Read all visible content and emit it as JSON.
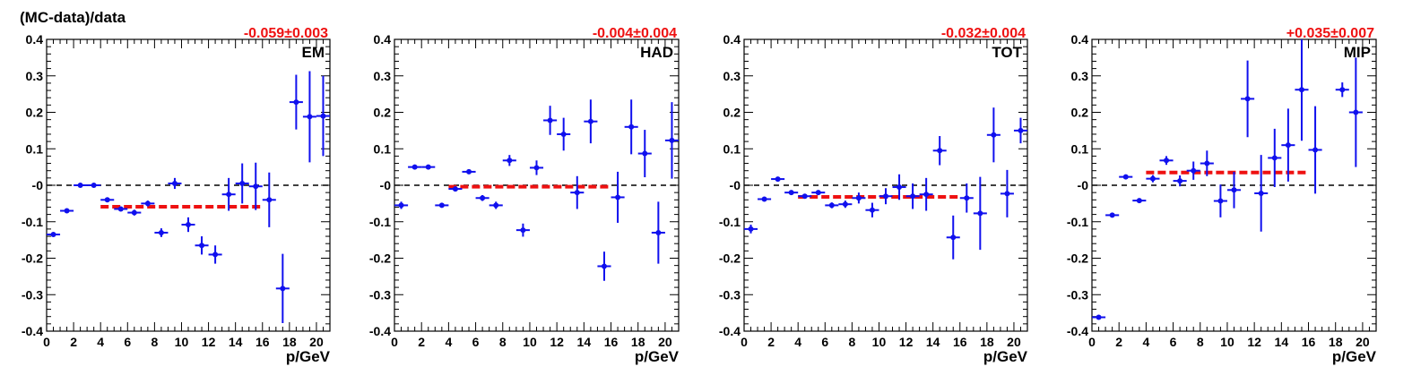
{
  "figure": {
    "ylabel": "(MC-data)/data",
    "xlabel": "p/GeV"
  },
  "colors": {
    "points": "#1010ee",
    "fit": "#ee1111",
    "zero_line": "#000000",
    "fit_label": "#ee1111"
  },
  "chart_data": [
    {
      "type": "scatter",
      "label": "EM",
      "fit_label": "-0.059±0.003",
      "fit": {
        "value": -0.059,
        "x_range": [
          4,
          16
        ]
      },
      "xlabel": "p/GeV",
      "ylabel": "(MC-data)/data",
      "xlim": [
        0,
        21
      ],
      "ylim": [
        -0.4,
        0.4
      ],
      "x_ticks": [
        "0",
        "2",
        "4",
        "6",
        "8",
        "10",
        "12",
        "14",
        "16",
        "18",
        "20"
      ],
      "y_ticks": [
        "-0.4",
        "-0.3",
        "-0.2",
        "-0.1",
        "-0",
        "0.1",
        "0.2",
        "0.3",
        "0.4"
      ],
      "points": [
        {
          "x": 0.5,
          "y": -0.135,
          "err": 0.005
        },
        {
          "x": 1.5,
          "y": -0.07,
          "err": 0.005
        },
        {
          "x": 2.5,
          "y": 0.0,
          "err": 0.004
        },
        {
          "x": 3.5,
          "y": 0.0,
          "err": 0.004
        },
        {
          "x": 4.5,
          "y": -0.04,
          "err": 0.006
        },
        {
          "x": 5.5,
          "y": -0.065,
          "err": 0.006
        },
        {
          "x": 6.5,
          "y": -0.075,
          "err": 0.008
        },
        {
          "x": 7.5,
          "y": -0.05,
          "err": 0.008
        },
        {
          "x": 8.5,
          "y": -0.13,
          "err": 0.012
        },
        {
          "x": 9.5,
          "y": 0.005,
          "err": 0.015
        },
        {
          "x": 10.5,
          "y": -0.108,
          "err": 0.02
        },
        {
          "x": 11.5,
          "y": -0.165,
          "err": 0.025
        },
        {
          "x": 12.5,
          "y": -0.19,
          "err": 0.025
        },
        {
          "x": 13.5,
          "y": -0.025,
          "err": 0.045
        },
        {
          "x": 14.5,
          "y": 0.005,
          "err": 0.055
        },
        {
          "x": 15.5,
          "y": -0.003,
          "err": 0.065
        },
        {
          "x": 16.5,
          "y": -0.04,
          "err": 0.075
        },
        {
          "x": 17.5,
          "y": -0.283,
          "err": 0.095
        },
        {
          "x": 18.5,
          "y": 0.228,
          "err": 0.075
        },
        {
          "x": 19.5,
          "y": 0.188,
          "err": 0.125
        },
        {
          "x": 20.5,
          "y": 0.19,
          "err": 0.11
        }
      ]
    },
    {
      "type": "scatter",
      "label": "HAD",
      "fit_label": "-0.004±0.004",
      "fit": {
        "value": -0.004,
        "x_range": [
          4,
          16
        ]
      },
      "xlabel": "p/GeV",
      "ylabel": "",
      "xlim": [
        0,
        21
      ],
      "ylim": [
        -0.4,
        0.4
      ],
      "x_ticks": [
        "0",
        "2",
        "4",
        "6",
        "8",
        "10",
        "12",
        "14",
        "16",
        "18",
        "20"
      ],
      "y_ticks": [
        "-0.4",
        "-0.3",
        "-0.2",
        "-0.1",
        "-0",
        "0.1",
        "0.2",
        "0.3",
        "0.4"
      ],
      "points": [
        {
          "x": 0.5,
          "y": -0.055,
          "err": 0.01
        },
        {
          "x": 1.5,
          "y": 0.05,
          "err": 0.005
        },
        {
          "x": 2.5,
          "y": 0.05,
          "err": 0.005
        },
        {
          "x": 3.5,
          "y": -0.055,
          "err": 0.005
        },
        {
          "x": 4.5,
          "y": -0.01,
          "err": 0.006
        },
        {
          "x": 5.5,
          "y": 0.037,
          "err": 0.006
        },
        {
          "x": 6.5,
          "y": -0.035,
          "err": 0.008
        },
        {
          "x": 7.5,
          "y": -0.055,
          "err": 0.01
        },
        {
          "x": 8.5,
          "y": 0.068,
          "err": 0.015
        },
        {
          "x": 9.5,
          "y": -0.123,
          "err": 0.018
        },
        {
          "x": 10.5,
          "y": 0.048,
          "err": 0.02
        },
        {
          "x": 11.5,
          "y": 0.178,
          "err": 0.04
        },
        {
          "x": 12.5,
          "y": 0.14,
          "err": 0.045
        },
        {
          "x": 13.5,
          "y": -0.02,
          "err": 0.045
        },
        {
          "x": 14.5,
          "y": 0.175,
          "err": 0.06
        },
        {
          "x": 15.5,
          "y": -0.222,
          "err": 0.04
        },
        {
          "x": 16.5,
          "y": -0.033,
          "err": 0.07
        },
        {
          "x": 17.5,
          "y": 0.16,
          "err": 0.075
        },
        {
          "x": 18.5,
          "y": 0.087,
          "err": 0.065
        },
        {
          "x": 19.5,
          "y": -0.13,
          "err": 0.085
        },
        {
          "x": 20.5,
          "y": 0.123,
          "err": 0.105
        }
      ]
    },
    {
      "type": "scatter",
      "label": "TOT",
      "fit_label": "-0.032±0.004",
      "fit": {
        "value": -0.032,
        "x_range": [
          4,
          16
        ]
      },
      "xlabel": "p/GeV",
      "ylabel": "",
      "xlim": [
        0,
        21
      ],
      "ylim": [
        -0.4,
        0.4
      ],
      "x_ticks": [
        "0",
        "2",
        "4",
        "6",
        "8",
        "10",
        "12",
        "14",
        "16",
        "18",
        "20"
      ],
      "y_ticks": [
        "-0.4",
        "-0.3",
        "-0.2",
        "-0.1",
        "-0",
        "0.1",
        "0.2",
        "0.3",
        "0.4"
      ],
      "points": [
        {
          "x": 0.5,
          "y": -0.12,
          "err": 0.012
        },
        {
          "x": 1.5,
          "y": -0.038,
          "err": 0.005
        },
        {
          "x": 2.5,
          "y": 0.017,
          "err": 0.005
        },
        {
          "x": 3.5,
          "y": -0.02,
          "err": 0.005
        },
        {
          "x": 4.5,
          "y": -0.03,
          "err": 0.006
        },
        {
          "x": 5.5,
          "y": -0.02,
          "err": 0.006
        },
        {
          "x": 6.5,
          "y": -0.055,
          "err": 0.008
        },
        {
          "x": 7.5,
          "y": -0.052,
          "err": 0.01
        },
        {
          "x": 8.5,
          "y": -0.035,
          "err": 0.015
        },
        {
          "x": 9.5,
          "y": -0.068,
          "err": 0.02
        },
        {
          "x": 10.5,
          "y": -0.03,
          "err": 0.022
        },
        {
          "x": 11.5,
          "y": -0.005,
          "err": 0.035
        },
        {
          "x": 12.5,
          "y": -0.03,
          "err": 0.035
        },
        {
          "x": 13.5,
          "y": -0.025,
          "err": 0.045
        },
        {
          "x": 14.5,
          "y": 0.095,
          "err": 0.04
        },
        {
          "x": 15.5,
          "y": -0.143,
          "err": 0.06
        },
        {
          "x": 16.5,
          "y": -0.035,
          "err": 0.04
        },
        {
          "x": 17.5,
          "y": -0.077,
          "err": 0.1
        },
        {
          "x": 18.5,
          "y": 0.138,
          "err": 0.075
        },
        {
          "x": 19.5,
          "y": -0.023,
          "err": 0.065
        },
        {
          "x": 20.5,
          "y": 0.15,
          "err": 0.035
        }
      ]
    },
    {
      "type": "scatter",
      "label": "MIP",
      "fit_label": "+0.035±0.007",
      "fit": {
        "value": 0.035,
        "x_range": [
          4,
          16
        ]
      },
      "xlabel": "p/GeV",
      "ylabel": "",
      "xlim": [
        0,
        21
      ],
      "ylim": [
        -0.4,
        0.4
      ],
      "x_ticks": [
        "0",
        "2",
        "4",
        "6",
        "8",
        "10",
        "12",
        "14",
        "16",
        "18",
        "20"
      ],
      "y_ticks": [
        "-0.4",
        "-0.3",
        "-0.2",
        "-0.1",
        "-0",
        "0.1",
        "0.2",
        "0.3",
        "0.4"
      ],
      "points": [
        {
          "x": 0.5,
          "y": -0.362,
          "err": 0.006
        },
        {
          "x": 1.5,
          "y": -0.082,
          "err": 0.005
        },
        {
          "x": 2.5,
          "y": 0.023,
          "err": 0.006
        },
        {
          "x": 3.5,
          "y": -0.042,
          "err": 0.006
        },
        {
          "x": 4.5,
          "y": 0.018,
          "err": 0.01
        },
        {
          "x": 5.5,
          "y": 0.068,
          "err": 0.012
        },
        {
          "x": 6.5,
          "y": 0.012,
          "err": 0.015
        },
        {
          "x": 7.5,
          "y": 0.04,
          "err": 0.025
        },
        {
          "x": 8.5,
          "y": 0.06,
          "err": 0.035
        },
        {
          "x": 9.5,
          "y": -0.043,
          "err": 0.045
        },
        {
          "x": 10.5,
          "y": -0.013,
          "err": 0.05
        },
        {
          "x": 11.5,
          "y": 0.237,
          "err": 0.105
        },
        {
          "x": 12.5,
          "y": -0.022,
          "err": 0.105
        },
        {
          "x": 13.5,
          "y": 0.075,
          "err": 0.08
        },
        {
          "x": 14.5,
          "y": 0.11,
          "err": 0.1
        },
        {
          "x": 15.5,
          "y": 0.262,
          "err": 0.14
        },
        {
          "x": 16.5,
          "y": 0.097,
          "err": 0.12
        },
        {
          "x": 17.5,
          "y": null,
          "err": null
        },
        {
          "x": 18.5,
          "y": 0.262,
          "err": 0.02
        },
        {
          "x": 19.5,
          "y": 0.2,
          "err": 0.15
        },
        {
          "x": 20.5,
          "y": null,
          "err": null
        }
      ]
    }
  ]
}
